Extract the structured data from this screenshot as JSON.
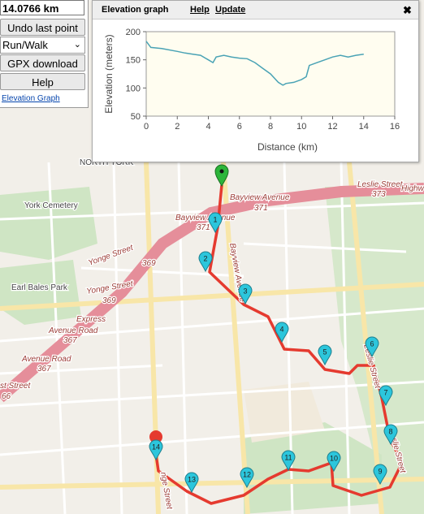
{
  "panel": {
    "distance": "14.0766 km",
    "undo": "Undo last point",
    "mode": "Run/Walk",
    "gpx": "GPX download",
    "help": "Help",
    "elevation_link": "Elevation Graph"
  },
  "graph_window": {
    "help": "Help",
    "update": "Update",
    "close": "✖"
  },
  "map": {
    "labels": [
      "NORTH YORK",
      "Bayview Avenue",
      "371",
      "Bayview Avenue",
      "371",
      "Leslie Street",
      "373",
      "Highw",
      "York Cemetery",
      "Yonge Street",
      "369",
      "Yonge Street",
      "369",
      "Earl Bales Park",
      "Express",
      "Avenue Road",
      "367",
      "Avenue Road",
      "367",
      "st Street",
      "66",
      "Bayview Avenue",
      "Leslie Street",
      "slie Street",
      "nge Street"
    ],
    "markers": [
      "1",
      "2",
      "3",
      "4",
      "5",
      "6",
      "7",
      "8",
      "9",
      "10",
      "11",
      "12",
      "13",
      "14"
    ]
  },
  "chart_data": {
    "type": "line",
    "title": "Elevation graph",
    "x_label": "Distance (km)",
    "y_label": "Elevation (meters)",
    "x": [
      0,
      0.3,
      1,
      2,
      2.5,
      3,
      3.5,
      4,
      4.3,
      4.5,
      5,
      5.5,
      6,
      6.5,
      7,
      7.5,
      8,
      8.5,
      8.8,
      9,
      9.5,
      10,
      10.3,
      10.5,
      11,
      11.5,
      12,
      12.5,
      13,
      13.5,
      14
    ],
    "values": [
      183,
      172,
      170,
      165,
      162,
      160,
      158,
      150,
      145,
      155,
      158,
      155,
      153,
      152,
      145,
      135,
      125,
      110,
      105,
      108,
      110,
      115,
      120,
      140,
      145,
      150,
      155,
      158,
      155,
      158,
      160
    ],
    "color": "#4aa3b5",
    "xlim": [
      0,
      16
    ],
    "ylim": [
      50,
      200
    ],
    "xticks": [
      0,
      2,
      4,
      6,
      8,
      10,
      12,
      14,
      16
    ],
    "yticks": [
      50,
      100,
      150,
      200
    ]
  }
}
